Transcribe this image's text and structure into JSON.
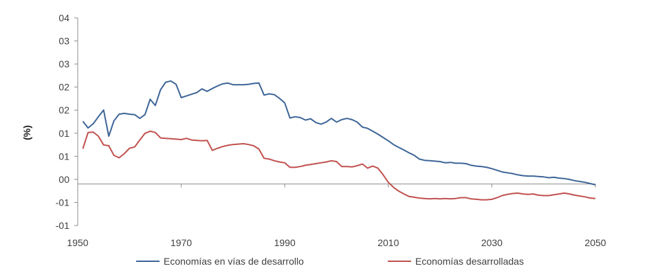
{
  "chart_data": {
    "type": "line",
    "title": "",
    "xlabel": "",
    "ylabel": "(%)",
    "xlim": [
      1950,
      2050
    ],
    "ylim": [
      -1,
      4
    ],
    "x_ticks": [
      "1950",
      "1970",
      "1990",
      "2010",
      "2030",
      "2050"
    ],
    "y_ticks": [
      "04",
      "03",
      "03",
      "02",
      "02",
      "01",
      "01",
      "00",
      "-01",
      "-01"
    ],
    "grid": false,
    "zero_line": true,
    "legend_position": "bottom",
    "colors": {
      "developing": "#3c6496",
      "developed": "#c0504d"
    },
    "series": [
      {
        "name": "Economías en vías de desarrollo",
        "x": [
          1951,
          1952,
          1953,
          1954,
          1955,
          1956,
          1957,
          1958,
          1959,
          1960,
          1961,
          1962,
          1963,
          1964,
          1965,
          1966,
          1967,
          1968,
          1969,
          1970,
          1971,
          1972,
          1973,
          1974,
          1975,
          1976,
          1977,
          1978,
          1979,
          1980,
          1981,
          1982,
          1983,
          1984,
          1985,
          1986,
          1987,
          1988,
          1989,
          1990,
          1991,
          1992,
          1993,
          1994,
          1995,
          1996,
          1997,
          1998,
          1999,
          2000,
          2001,
          2002,
          2003,
          2004,
          2005,
          2006,
          2007,
          2008,
          2009,
          2010,
          2011,
          2012,
          2013,
          2014,
          2015,
          2016,
          2017,
          2018,
          2019,
          2020,
          2021,
          2022,
          2023,
          2024,
          2025,
          2026,
          2027,
          2028,
          2029,
          2030,
          2031,
          2032,
          2033,
          2034,
          2035,
          2036,
          2037,
          2038,
          2039,
          2040,
          2041,
          2042,
          2043,
          2044,
          2045,
          2046,
          2047,
          2048,
          2049,
          2050
        ],
        "y": [
          1.51,
          1.35,
          1.45,
          1.62,
          1.78,
          1.15,
          1.52,
          1.68,
          1.7,
          1.68,
          1.67,
          1.58,
          1.67,
          2.04,
          1.89,
          2.27,
          2.45,
          2.48,
          2.4,
          2.08,
          2.12,
          2.16,
          2.2,
          2.29,
          2.23,
          2.3,
          2.36,
          2.41,
          2.43,
          2.39,
          2.39,
          2.39,
          2.4,
          2.42,
          2.43,
          2.14,
          2.17,
          2.15,
          2.06,
          1.95,
          1.59,
          1.62,
          1.6,
          1.54,
          1.57,
          1.48,
          1.44,
          1.49,
          1.58,
          1.49,
          1.55,
          1.58,
          1.55,
          1.49,
          1.37,
          1.34,
          1.27,
          1.2,
          1.12,
          1.04,
          0.95,
          0.88,
          0.82,
          0.75,
          0.69,
          0.6,
          0.57,
          0.56,
          0.55,
          0.54,
          0.51,
          0.52,
          0.5,
          0.5,
          0.49,
          0.45,
          0.43,
          0.42,
          0.4,
          0.37,
          0.33,
          0.29,
          0.27,
          0.25,
          0.22,
          0.2,
          0.19,
          0.19,
          0.18,
          0.17,
          0.15,
          0.16,
          0.14,
          0.13,
          0.11,
          0.08,
          0.06,
          0.04,
          0.01,
          -0.02
        ]
      },
      {
        "name": "Economías desarrolladas",
        "x": [
          1951,
          1952,
          1953,
          1954,
          1955,
          1956,
          1957,
          1958,
          1959,
          1960,
          1961,
          1962,
          1963,
          1964,
          1965,
          1966,
          1967,
          1968,
          1969,
          1970,
          1971,
          1972,
          1973,
          1974,
          1975,
          1976,
          1977,
          1978,
          1979,
          1980,
          1981,
          1982,
          1983,
          1984,
          1985,
          1986,
          1987,
          1988,
          1989,
          1990,
          1991,
          1992,
          1993,
          1994,
          1995,
          1996,
          1997,
          1998,
          1999,
          2000,
          2001,
          2002,
          2003,
          2004,
          2005,
          2006,
          2007,
          2008,
          2009,
          2010,
          2011,
          2012,
          2013,
          2014,
          2015,
          2016,
          2017,
          2018,
          2019,
          2020,
          2021,
          2022,
          2023,
          2024,
          2025,
          2026,
          2027,
          2028,
          2029,
          2030,
          2031,
          2032,
          2033,
          2034,
          2035,
          2036,
          2037,
          2038,
          2039,
          2040,
          2041,
          2042,
          2043,
          2044,
          2045,
          2046,
          2047,
          2048,
          2049,
          2050
        ],
        "y": [
          0.85,
          1.24,
          1.25,
          1.15,
          0.94,
          0.92,
          0.69,
          0.63,
          0.73,
          0.86,
          0.89,
          1.06,
          1.22,
          1.27,
          1.24,
          1.11,
          1.1,
          1.09,
          1.08,
          1.07,
          1.1,
          1.06,
          1.05,
          1.04,
          1.05,
          0.81,
          0.86,
          0.9,
          0.93,
          0.95,
          0.96,
          0.97,
          0.95,
          0.92,
          0.84,
          0.62,
          0.6,
          0.56,
          0.53,
          0.51,
          0.4,
          0.4,
          0.42,
          0.45,
          0.47,
          0.49,
          0.51,
          0.53,
          0.56,
          0.54,
          0.42,
          0.42,
          0.41,
          0.44,
          0.48,
          0.38,
          0.43,
          0.38,
          0.22,
          0.04,
          -0.08,
          -0.17,
          -0.24,
          -0.3,
          -0.32,
          -0.34,
          -0.35,
          -0.36,
          -0.35,
          -0.36,
          -0.35,
          -0.36,
          -0.35,
          -0.33,
          -0.33,
          -0.36,
          -0.37,
          -0.38,
          -0.38,
          -0.37,
          -0.33,
          -0.28,
          -0.25,
          -0.23,
          -0.22,
          -0.24,
          -0.25,
          -0.24,
          -0.27,
          -0.28,
          -0.28,
          -0.26,
          -0.24,
          -0.22,
          -0.24,
          -0.27,
          -0.29,
          -0.31,
          -0.34,
          -0.35
        ]
      }
    ]
  }
}
